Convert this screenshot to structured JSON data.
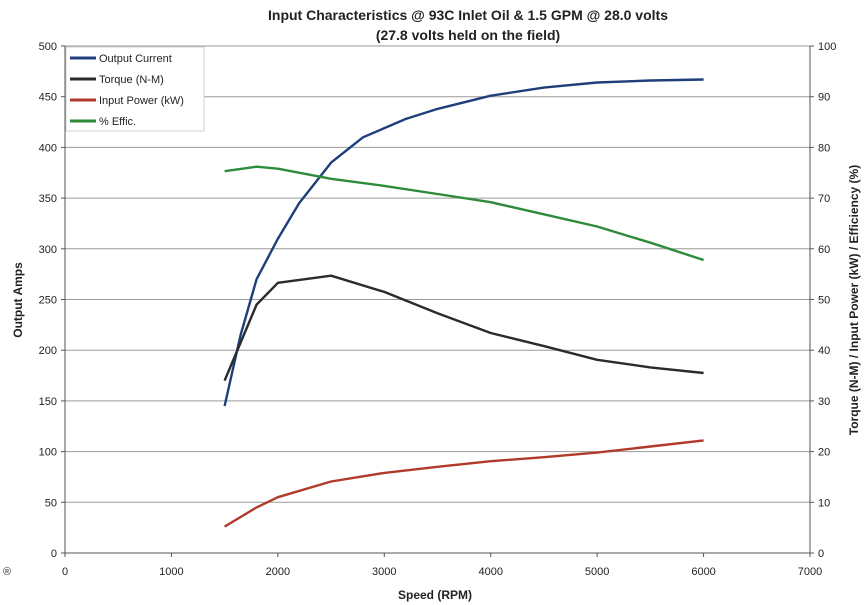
{
  "chart_data": {
    "type": "line",
    "title": "Input Characteristics @ 93C Inlet Oil & 1.5 GPM @ 28.0 volts",
    "subtitle": "(27.8 volts held on the field)",
    "xlabel": "Speed (RPM)",
    "ylabel": "Output Amps",
    "ylabel_right": "Torque (N-M) / Input Power (kW) / Efficiency (%)",
    "xlim": [
      0,
      7000
    ],
    "ylim": [
      0,
      500
    ],
    "ylim_right": [
      0,
      100
    ],
    "x_ticks": [
      "0",
      "1000",
      "2000",
      "3000",
      "4000",
      "5000",
      "6000",
      "7000"
    ],
    "y_ticks": [
      "0",
      "50",
      "100",
      "150",
      "200",
      "250",
      "300",
      "350",
      "400",
      "450",
      "500"
    ],
    "y_ticks_right": [
      "0",
      "10",
      "20",
      "30",
      "40",
      "50",
      "60",
      "70",
      "80",
      "90",
      "100"
    ],
    "grid": true,
    "legend_position": "top-left",
    "series": [
      {
        "name": "Output Current",
        "axis": "left",
        "color": "#1f3f7a",
        "x": [
          1500,
          1650,
          1800,
          2000,
          2200,
          2500,
          2800,
          3200,
          3500,
          4000,
          4500,
          5000,
          5500,
          6000
        ],
        "y": [
          145,
          215,
          270,
          310,
          345,
          385,
          410,
          428,
          438,
          451,
          459,
          464,
          466,
          467
        ]
      },
      {
        "name": "Torque     (N-M)",
        "axis": "right",
        "color": "#2b2b2b",
        "x": [
          1500,
          1800,
          2000,
          2500,
          3000,
          3500,
          4000,
          4500,
          5000,
          5500,
          6000
        ],
        "y": [
          34,
          49,
          53.3,
          54.7,
          51.5,
          47.3,
          43.4,
          40.8,
          38.1,
          36.6,
          35.5
        ]
      },
      {
        "name": "Input Power (kW)",
        "axis": "right",
        "color": "#b23a2a",
        "x": [
          1500,
          1800,
          2000,
          2500,
          3000,
          3500,
          4000,
          4500,
          5000,
          5500,
          6000
        ],
        "y": [
          5.2,
          9,
          11,
          14.1,
          15.8,
          17,
          18.1,
          18.9,
          19.8,
          21,
          22.2
        ]
      },
      {
        "name": "% Effic.",
        "axis": "right",
        "color": "#2e8b3a",
        "x": [
          1500,
          1800,
          2000,
          2500,
          3000,
          3500,
          4000,
          4500,
          5000,
          5500,
          6000
        ],
        "y": [
          75.3,
          76.2,
          75.8,
          73.8,
          72.4,
          70.8,
          69.2,
          66.8,
          64.4,
          61.2,
          57.8
        ]
      }
    ]
  },
  "footer": {
    "copyright_symbol": "®"
  }
}
